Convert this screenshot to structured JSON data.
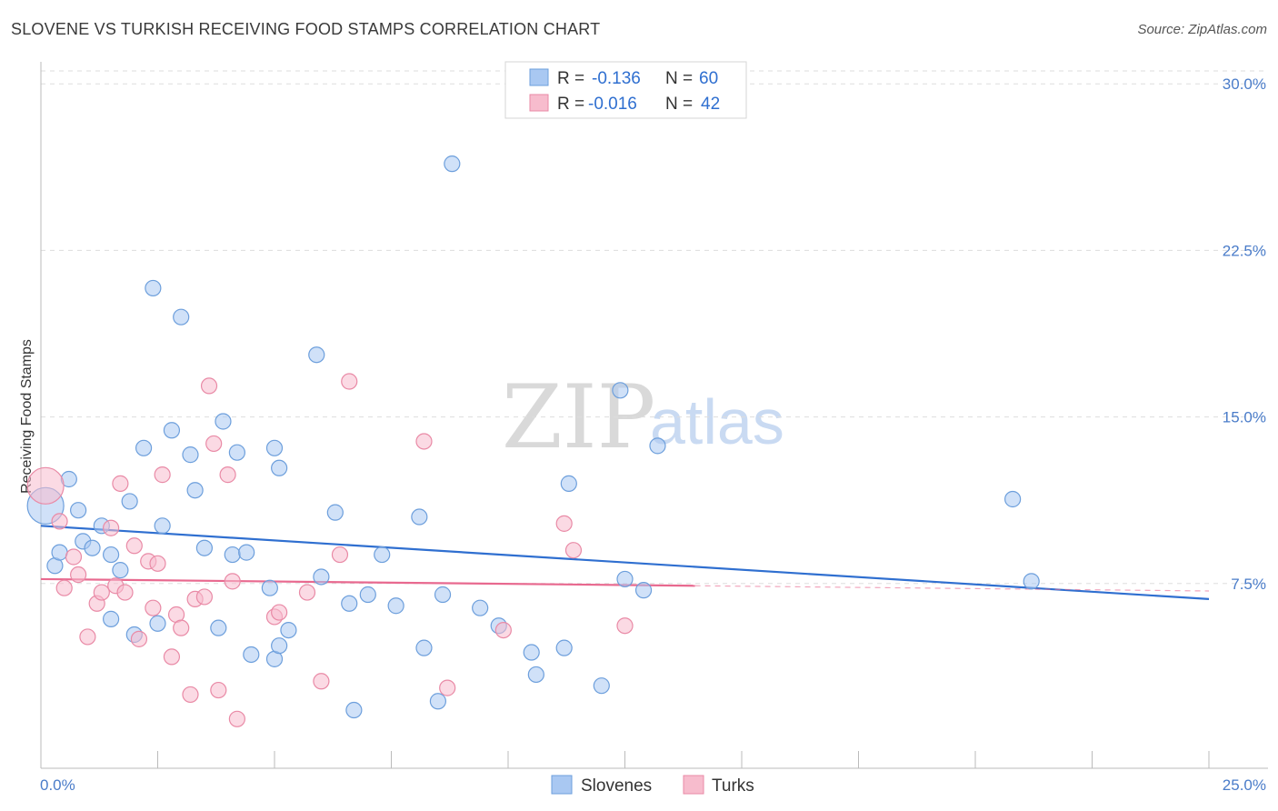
{
  "title": "SLOVENE VS TURKISH RECEIVING FOOD STAMPS CORRELATION CHART",
  "source": "Source: ZipAtlas.com",
  "colors": {
    "slovenes_fill": "#a9c8f2",
    "slovenes_stroke": "#6d9fdc",
    "slovenes_line": "#2f6fd0",
    "turks_fill": "#f7bccd",
    "turks_stroke": "#e98aa6",
    "turks_line": "#e8698f",
    "tick_text": "#4a7cc9",
    "grid": "#dddddd"
  },
  "legend": {
    "row1": {
      "r_label": "R =",
      "r_value": "-0.136",
      "n_label": "N =",
      "n_value": "60"
    },
    "row2": {
      "r_label": "R =",
      "r_value": "-0.016",
      "n_label": "N =",
      "n_value": "42"
    }
  },
  "watermark": {
    "zip": "ZIP",
    "atlas": "atlas"
  },
  "chart_data": {
    "type": "scatter",
    "title": "SLOVENE VS TURKISH RECEIVING FOOD STAMPS CORRELATION CHART",
    "ylabel": "Receiving Food Stamps",
    "xlabel": "",
    "xlim": [
      0,
      25
    ],
    "ylim": [
      0,
      30.5
    ],
    "x_tick_labels": [
      "0.0%",
      "25.0%"
    ],
    "y_ticks": [
      7.5,
      15.0,
      22.5,
      30.0
    ],
    "y_tick_labels": [
      "7.5%",
      "15.0%",
      "22.5%",
      "30.0%"
    ],
    "grid": true,
    "legend_position": "bottom-center",
    "series": [
      {
        "name": "Slovenes",
        "color": "#a9c8f2",
        "trend": {
          "x": [
            0,
            25
          ],
          "y": [
            10.1,
            6.8
          ]
        },
        "points": [
          [
            0.1,
            11.0
          ],
          [
            0.3,
            8.3
          ],
          [
            0.4,
            8.9
          ],
          [
            0.6,
            12.2
          ],
          [
            0.8,
            10.8
          ],
          [
            0.9,
            9.4
          ],
          [
            1.1,
            9.1
          ],
          [
            1.3,
            10.1
          ],
          [
            1.5,
            8.8
          ],
          [
            1.7,
            8.1
          ],
          [
            1.9,
            11.2
          ],
          [
            2.2,
            13.6
          ],
          [
            2.4,
            20.8
          ],
          [
            2.6,
            10.1
          ],
          [
            2.8,
            14.4
          ],
          [
            3.0,
            19.5
          ],
          [
            3.2,
            13.3
          ],
          [
            3.3,
            11.7
          ],
          [
            3.5,
            9.1
          ],
          [
            3.9,
            14.8
          ],
          [
            4.1,
            8.8
          ],
          [
            4.2,
            13.4
          ],
          [
            4.4,
            8.9
          ],
          [
            4.9,
            7.3
          ],
          [
            5.1,
            12.7
          ],
          [
            5.0,
            13.6
          ],
          [
            5.9,
            17.8
          ],
          [
            6.3,
            10.7
          ],
          [
            6.0,
            7.8
          ],
          [
            6.6,
            6.6
          ],
          [
            7.0,
            7.0
          ],
          [
            7.3,
            8.8
          ],
          [
            7.6,
            6.5
          ],
          [
            8.1,
            10.5
          ],
          [
            8.6,
            7.0
          ],
          [
            9.4,
            6.4
          ],
          [
            8.8,
            26.4
          ],
          [
            9.8,
            5.6
          ],
          [
            10.5,
            4.4
          ],
          [
            11.2,
            4.6
          ],
          [
            11.3,
            12.0
          ],
          [
            12.4,
            16.2
          ],
          [
            12.5,
            7.7
          ],
          [
            12.9,
            7.2
          ],
          [
            13.2,
            13.7
          ],
          [
            1.5,
            5.9
          ],
          [
            2.0,
            5.2
          ],
          [
            2.5,
            5.7
          ],
          [
            3.8,
            5.5
          ],
          [
            4.5,
            4.3
          ],
          [
            5.0,
            4.1
          ],
          [
            5.1,
            4.7
          ],
          [
            5.3,
            5.4
          ],
          [
            6.7,
            1.8
          ],
          [
            8.2,
            4.6
          ],
          [
            8.5,
            2.2
          ],
          [
            10.6,
            3.4
          ],
          [
            12.0,
            2.9
          ],
          [
            20.8,
            11.3
          ],
          [
            21.2,
            7.6
          ]
        ]
      },
      {
        "name": "Turks",
        "color": "#f7bccd",
        "trend": {
          "x": [
            0,
            14
          ],
          "y": [
            7.7,
            7.4
          ]
        },
        "points": [
          [
            0.1,
            11.9
          ],
          [
            0.4,
            10.3
          ],
          [
            0.5,
            7.3
          ],
          [
            0.7,
            8.7
          ],
          [
            0.8,
            7.9
          ],
          [
            1.0,
            5.1
          ],
          [
            1.2,
            6.6
          ],
          [
            1.3,
            7.1
          ],
          [
            1.5,
            10.0
          ],
          [
            1.6,
            7.4
          ],
          [
            1.7,
            12.0
          ],
          [
            1.8,
            7.1
          ],
          [
            2.0,
            9.2
          ],
          [
            2.1,
            5.0
          ],
          [
            2.3,
            8.5
          ],
          [
            2.4,
            6.4
          ],
          [
            2.5,
            8.4
          ],
          [
            2.6,
            12.4
          ],
          [
            2.8,
            4.2
          ],
          [
            2.9,
            6.1
          ],
          [
            3.0,
            5.5
          ],
          [
            3.2,
            2.5
          ],
          [
            3.3,
            6.8
          ],
          [
            3.5,
            6.9
          ],
          [
            3.6,
            16.4
          ],
          [
            3.7,
            13.8
          ],
          [
            3.8,
            2.7
          ],
          [
            4.0,
            12.4
          ],
          [
            4.1,
            7.6
          ],
          [
            4.2,
            1.4
          ],
          [
            5.0,
            6.0
          ],
          [
            5.1,
            6.2
          ],
          [
            5.7,
            7.1
          ],
          [
            6.0,
            3.1
          ],
          [
            6.4,
            8.8
          ],
          [
            6.6,
            16.6
          ],
          [
            8.2,
            13.9
          ],
          [
            8.7,
            2.8
          ],
          [
            9.9,
            5.4
          ],
          [
            11.2,
            10.2
          ],
          [
            11.4,
            9.0
          ],
          [
            12.5,
            5.6
          ]
        ]
      }
    ]
  }
}
